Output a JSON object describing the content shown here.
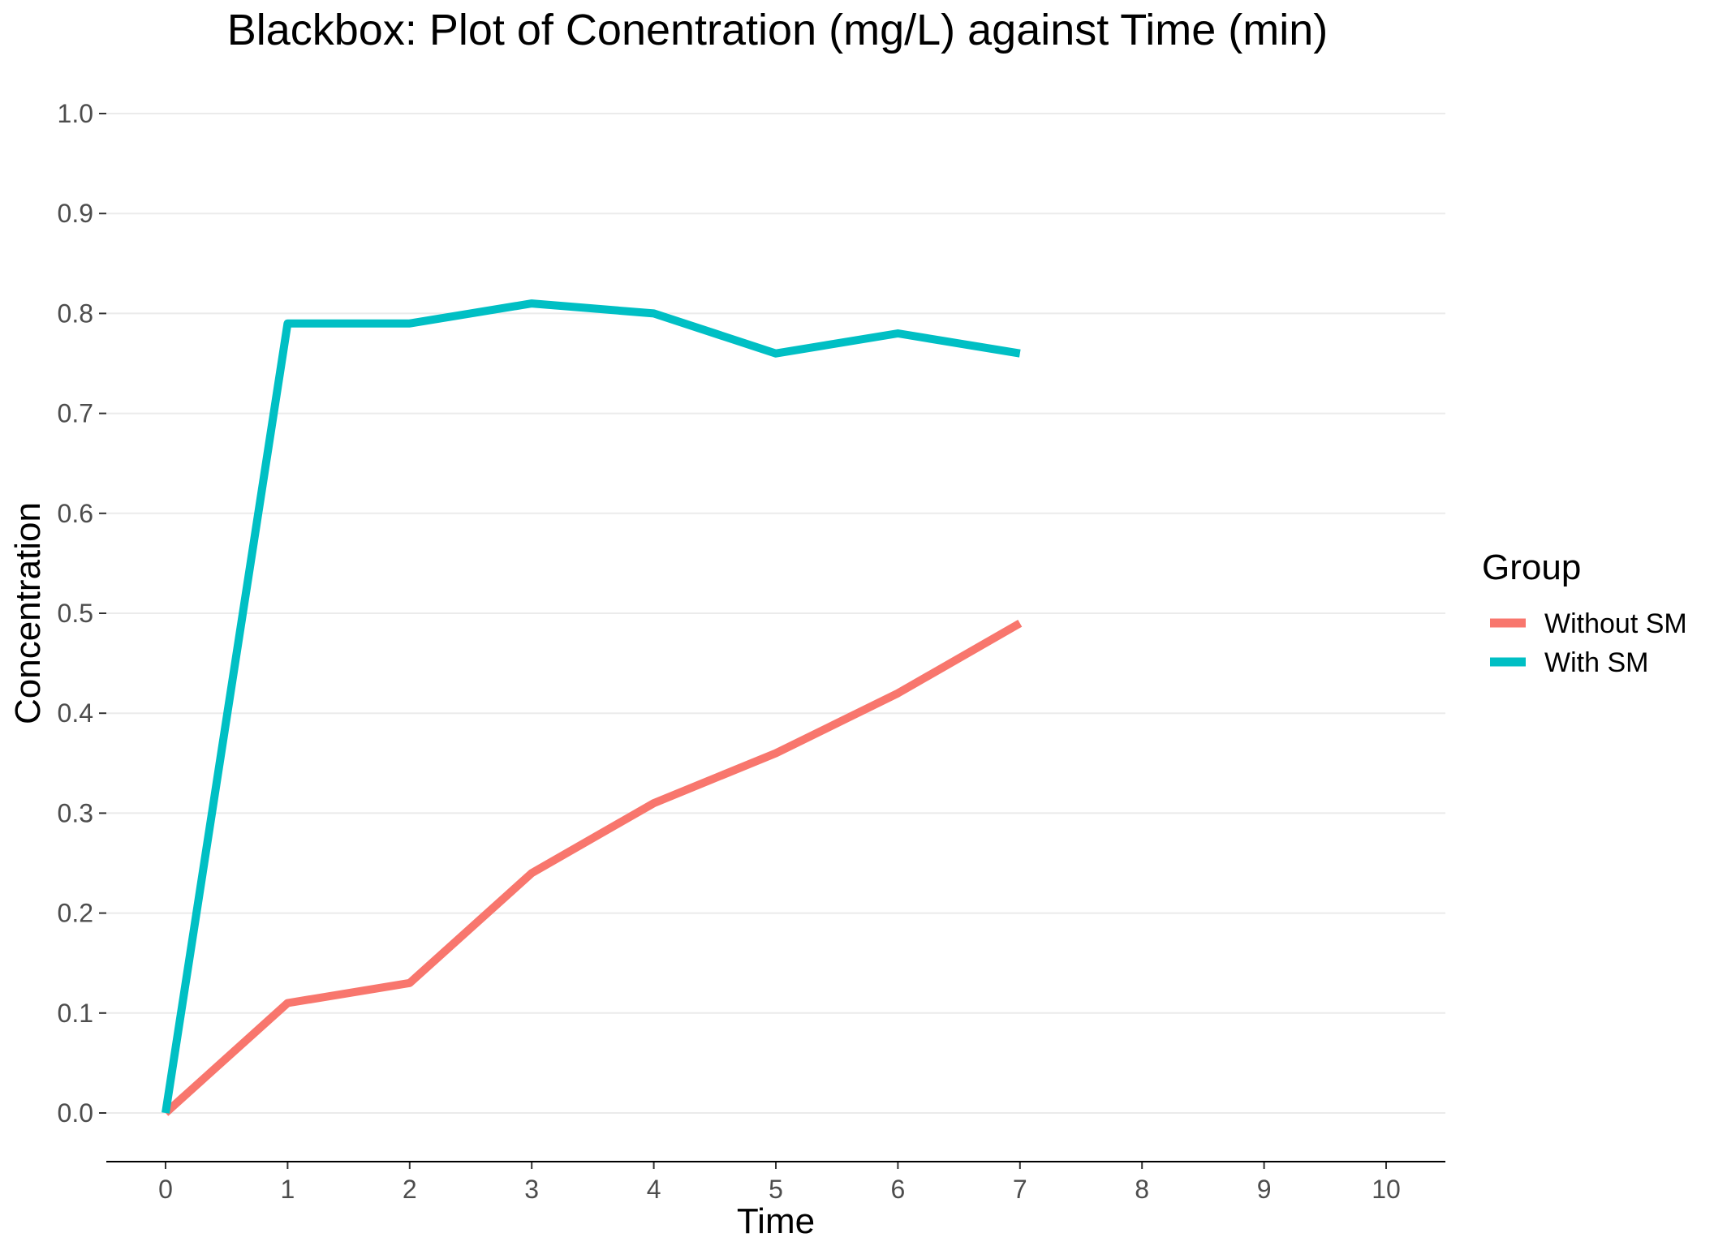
{
  "chart_data": {
    "type": "line",
    "title": "Blackbox: Plot of Conentration (mg/L) against Time (min)",
    "xlabel": "Time",
    "ylabel": "Concentration",
    "xlim": [
      0,
      10
    ],
    "ylim": [
      0,
      1
    ],
    "x_ticks": [
      "0",
      "1",
      "2",
      "3",
      "4",
      "5",
      "6",
      "7",
      "8",
      "9",
      "10"
    ],
    "y_ticks": [
      "0.0",
      "0.1",
      "0.2",
      "0.3",
      "0.4",
      "0.5",
      "0.6",
      "0.7",
      "0.8",
      "0.9",
      "1.0"
    ],
    "grid": "horizontal major gridlines",
    "legend": {
      "title": "Group",
      "placement": "right"
    },
    "x": [
      0,
      1,
      2,
      3,
      4,
      5,
      6,
      7
    ],
    "series": [
      {
        "name": "Without SM",
        "color": "#F8766D",
        "values": [
          0.0,
          0.11,
          0.13,
          0.24,
          0.31,
          0.36,
          0.42,
          0.49
        ]
      },
      {
        "name": "With SM",
        "color": "#00BFC4",
        "values": [
          0.0,
          0.79,
          0.79,
          0.81,
          0.8,
          0.76,
          0.78,
          0.76
        ]
      }
    ]
  }
}
